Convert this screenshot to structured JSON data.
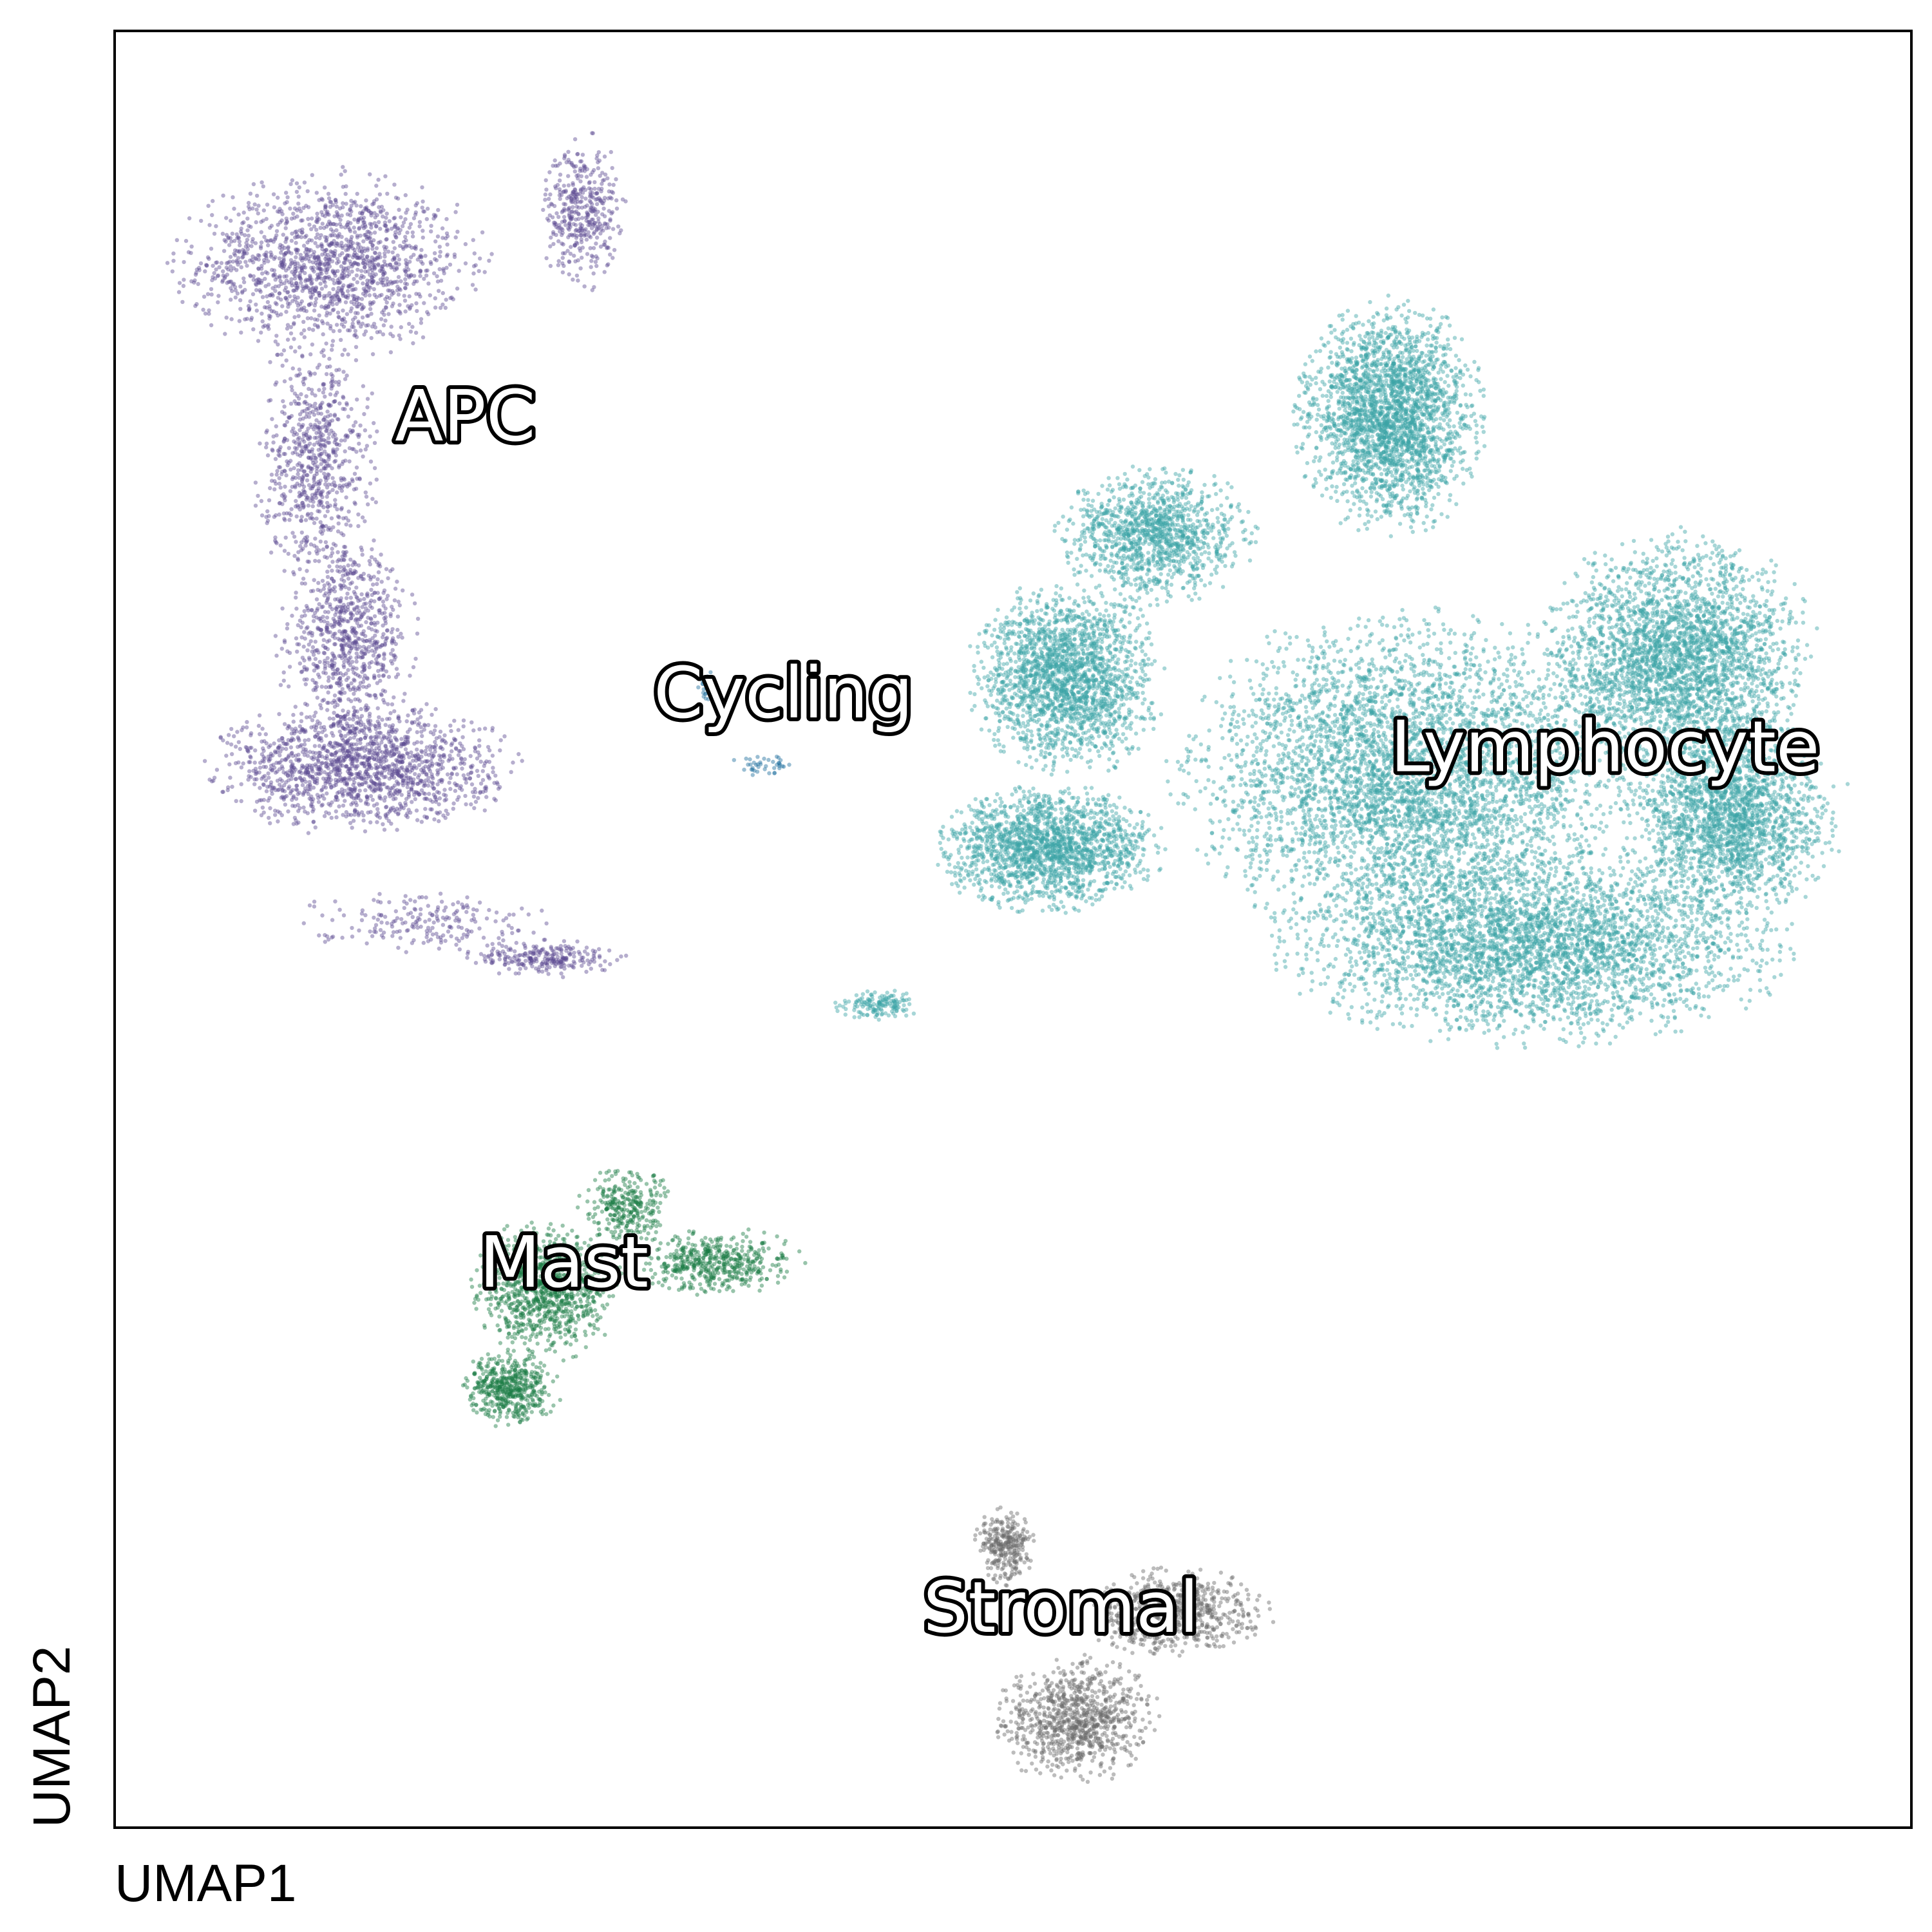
{
  "chart_data": {
    "type": "scatter",
    "title": "",
    "xlabel": "UMAP1",
    "ylabel": "UMAP2",
    "xlim": [
      0,
      100
    ],
    "ylim": [
      0,
      100
    ],
    "grid": false,
    "legend": "on-data",
    "clusters": [
      {
        "label": "APC",
        "color": "#5e4b93",
        "label_pos": [
          15.6,
          77.2
        ],
        "regions": [
          {
            "cx": 12.0,
            "cy": 87.0,
            "rx": 8.0,
            "ry": 4.8,
            "n": 1500
          },
          {
            "cx": 26.0,
            "cy": 90.0,
            "rx": 2.2,
            "ry": 4.0,
            "n": 400
          },
          {
            "cx": 11.2,
            "cy": 76.0,
            "rx": 3.2,
            "ry": 6.5,
            "n": 700
          },
          {
            "cx": 13.0,
            "cy": 66.0,
            "rx": 3.6,
            "ry": 5.5,
            "n": 800
          },
          {
            "cx": 13.8,
            "cy": 59.0,
            "rx": 8.0,
            "ry": 3.4,
            "n": 1500
          },
          {
            "cx": 24.0,
            "cy": 48.4,
            "rx": 4.0,
            "ry": 1.0,
            "n": 250
          },
          {
            "cx": 17.0,
            "cy": 50.5,
            "rx": 6.5,
            "ry": 1.6,
            "n": 200
          }
        ]
      },
      {
        "label": "Cycling",
        "color": "#1f6f9e",
        "label_pos": [
          30.0,
          61.8
        ],
        "regions": [
          {
            "cx": 33.0,
            "cy": 63.5,
            "rx": 0.5,
            "ry": 0.8,
            "n": 40
          },
          {
            "cx": 36.0,
            "cy": 59.2,
            "rx": 1.6,
            "ry": 0.7,
            "n": 40
          }
        ]
      },
      {
        "label": "Lymphocyte",
        "color": "#3ba3a6",
        "label_pos": [
          71.0,
          58.8
        ],
        "regions": [
          {
            "cx": 53.0,
            "cy": 64.0,
            "rx": 5.0,
            "ry": 5.0,
            "n": 2000
          },
          {
            "cx": 52.0,
            "cy": 54.5,
            "rx": 6.0,
            "ry": 3.2,
            "n": 1800
          },
          {
            "cx": 58.0,
            "cy": 72.0,
            "rx": 5.0,
            "ry": 3.5,
            "n": 1200
          },
          {
            "cx": 71.0,
            "cy": 78.5,
            "rx": 4.8,
            "ry": 6.0,
            "n": 2500
          },
          {
            "cx": 72.0,
            "cy": 58.5,
            "rx": 12.0,
            "ry": 8.5,
            "n": 4500
          },
          {
            "cx": 79.0,
            "cy": 49.0,
            "rx": 13.0,
            "ry": 5.0,
            "n": 3500
          },
          {
            "cx": 87.0,
            "cy": 65.0,
            "rx": 7.0,
            "ry": 6.5,
            "n": 3000
          },
          {
            "cx": 90.0,
            "cy": 56.0,
            "rx": 5.5,
            "ry": 5.0,
            "n": 2000
          },
          {
            "cx": 42.5,
            "cy": 45.8,
            "rx": 2.2,
            "ry": 0.8,
            "n": 150
          }
        ]
      },
      {
        "label": "Mast",
        "color": "#1b7d45",
        "label_pos": [
          20.3,
          30.1
        ],
        "regions": [
          {
            "cx": 24.0,
            "cy": 30.0,
            "rx": 3.8,
            "ry": 3.6,
            "n": 1000
          },
          {
            "cx": 22.0,
            "cy": 24.5,
            "rx": 2.5,
            "ry": 2.0,
            "n": 500
          },
          {
            "cx": 33.5,
            "cy": 31.5,
            "rx": 4.5,
            "ry": 1.7,
            "n": 500
          },
          {
            "cx": 28.5,
            "cy": 34.5,
            "rx": 2.5,
            "ry": 2.0,
            "n": 300
          }
        ]
      },
      {
        "label": "Stromal",
        "color": "#6b6b6b",
        "label_pos": [
          45.0,
          10.9
        ],
        "regions": [
          {
            "cx": 53.5,
            "cy": 6.0,
            "rx": 4.2,
            "ry": 3.2,
            "n": 900
          },
          {
            "cx": 49.5,
            "cy": 15.7,
            "rx": 1.5,
            "ry": 2.0,
            "n": 300
          },
          {
            "cx": 59.0,
            "cy": 12.0,
            "rx": 5.0,
            "ry": 2.2,
            "n": 700
          }
        ]
      }
    ]
  }
}
